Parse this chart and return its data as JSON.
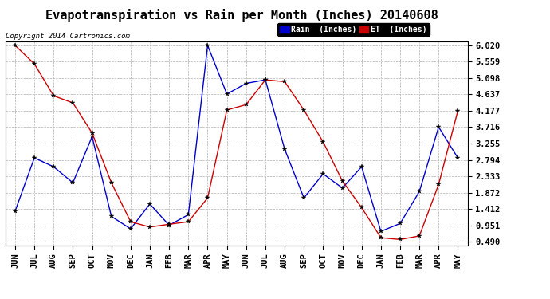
{
  "title": "Evapotranspiration vs Rain per Month (Inches) 20140608",
  "copyright": "Copyright 2014 Cartronics.com",
  "months": [
    "JUN",
    "JUL",
    "AUG",
    "SEP",
    "OCT",
    "NOV",
    "DEC",
    "JAN",
    "FEB",
    "MAR",
    "APR",
    "MAY",
    "JUN",
    "JUL",
    "AUG",
    "SEP",
    "OCT",
    "NOV",
    "DEC",
    "JAN",
    "FEB",
    "MAR",
    "APR",
    "MAY"
  ],
  "rain": [
    1.35,
    2.85,
    2.6,
    2.15,
    3.45,
    1.2,
    0.85,
    1.55,
    0.95,
    1.25,
    6.02,
    4.65,
    4.95,
    5.05,
    3.1,
    1.72,
    2.4,
    2.0,
    2.6,
    0.78,
    1.0,
    1.9,
    3.72,
    2.85
  ],
  "et": [
    6.02,
    5.5,
    4.6,
    4.4,
    3.55,
    2.15,
    1.05,
    0.9,
    0.98,
    1.05,
    1.72,
    4.2,
    4.35,
    5.05,
    5.0,
    4.2,
    3.3,
    2.2,
    1.45,
    0.6,
    0.55,
    0.65,
    2.1,
    4.18
  ],
  "rain_color": "#0000cc",
  "et_color": "#cc0000",
  "bg_color": "#ffffff",
  "grid_color": "#b0b0b0",
  "yticks": [
    0.49,
    0.951,
    1.412,
    1.872,
    2.333,
    2.794,
    3.255,
    3.716,
    4.177,
    4.637,
    5.098,
    5.559,
    6.02
  ],
  "ymin": 0.39,
  "ymax": 6.12,
  "title_fontsize": 11,
  "tick_fontsize": 7.5,
  "legend_rain": "Rain  (Inches)",
  "legend_et": "ET  (Inches)"
}
